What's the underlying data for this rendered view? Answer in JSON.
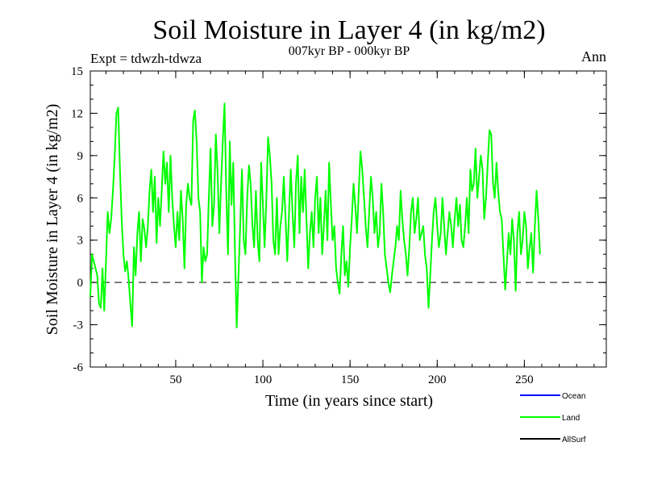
{
  "chart_data": {
    "type": "line",
    "title": "Soil Moisture in Layer 4 (in kg/m2)",
    "subtitle": "007kyr BP - 000kyr BP",
    "left_note": "Expt = tdwzh-tdwza",
    "right_note": "Ann",
    "xlabel": "Time (in years since start)",
    "ylabel": "Soil Moisture in Layer 4 (in kg/m2)",
    "xlim": [
      1,
      297
    ],
    "ylim": [
      -6,
      15
    ],
    "x_ticks": [
      50,
      100,
      150,
      200,
      250
    ],
    "y_ticks": [
      -6,
      -3,
      0,
      3,
      6,
      9,
      12,
      15
    ],
    "grid": false,
    "zero_line": "dashed",
    "legend_position": "bottom-right",
    "legend": [
      {
        "name": "Ocean",
        "color": "#0000ff"
      },
      {
        "name": "Land",
        "color": "#00ff00"
      },
      {
        "name": "AllSurf",
        "color": "#000000"
      }
    ],
    "series": [
      {
        "name": "Land",
        "color": "#00ff00",
        "x_start": 1,
        "x_step": 1,
        "values": [
          -1.0,
          2.0,
          1.5,
          1.0,
          0.5,
          -1.5,
          -1.8,
          1.0,
          -2.0,
          1.5,
          5.0,
          3.5,
          4.5,
          6.5,
          9.0,
          12.0,
          12.4,
          8.0,
          4.5,
          2.0,
          0.8,
          1.5,
          0.2,
          -1.5,
          -3.1,
          2.5,
          0.5,
          3.5,
          5.0,
          1.5,
          4.5,
          3.8,
          2.5,
          4.0,
          6.5,
          8.0,
          5.0,
          7.5,
          2.8,
          6.0,
          4.0,
          6.5,
          9.3,
          7.0,
          8.5,
          5.0,
          9.0,
          6.0,
          4.0,
          2.5,
          5.0,
          3.0,
          6.5,
          4.5,
          1.0,
          5.5,
          7.0,
          6.0,
          5.5,
          11.5,
          12.2,
          10.0,
          6.0,
          5.0,
          0.0,
          2.5,
          1.5,
          2.0,
          6.0,
          9.5,
          4.0,
          5.5,
          10.5,
          8.0,
          3.5,
          7.0,
          10.0,
          12.7,
          6.5,
          2.0,
          10.0,
          5.5,
          8.5,
          2.0,
          -3.2,
          0.5,
          4.0,
          8.0,
          3.0,
          2.0,
          6.0,
          8.3,
          7.0,
          4.0,
          2.5,
          6.5,
          3.0,
          1.5,
          8.5,
          5.5,
          2.5,
          6.0,
          10.3,
          9.0,
          7.0,
          3.0,
          2.0,
          6.0,
          2.0,
          4.0,
          5.0,
          7.5,
          4.5,
          1.5,
          5.0,
          8.0,
          5.0,
          2.5,
          7.0,
          9.0,
          3.5,
          7.5,
          5.0,
          8.0,
          4.5,
          1.0,
          3.5,
          5.0,
          2.5,
          6.0,
          7.5,
          3.5,
          6.0,
          2.0,
          4.0,
          6.5,
          3.0,
          8.5,
          5.5,
          3.0,
          4.0,
          1.0,
          0.0,
          -0.8,
          2.0,
          4.0,
          0.5,
          1.5,
          -0.3,
          2.5,
          4.5,
          7.0,
          5.5,
          3.5,
          6.5,
          9.3,
          8.0,
          6.0,
          4.0,
          2.5,
          5.0,
          7.5,
          6.0,
          3.5,
          5.0,
          2.5,
          3.5,
          7.0,
          5.0,
          2.0,
          1.0,
          0.0,
          -0.7,
          0.5,
          1.5,
          2.5,
          4.0,
          3.0,
          6.5,
          4.5,
          3.0,
          2.0,
          0.5,
          2.5,
          5.0,
          6.0,
          3.5,
          4.5,
          6.0,
          3.0,
          3.5,
          4.0,
          2.0,
          1.0,
          -1.8,
          0.5,
          3.0,
          5.0,
          6.0,
          4.0,
          2.5,
          3.5,
          6.0,
          4.0,
          2.0,
          3.5,
          5.0,
          4.0,
          2.5,
          4.5,
          6.0,
          4.0,
          5.5,
          3.0,
          2.5,
          4.0,
          6.0,
          3.5,
          8.0,
          6.5,
          7.0,
          9.5,
          6.0,
          7.5,
          9.0,
          8.0,
          4.5,
          6.0,
          8.5,
          10.8,
          10.5,
          7.0,
          6.0,
          8.5,
          6.5,
          5.0,
          4.5,
          2.0,
          -0.5,
          1.5,
          3.5,
          2.0,
          4.5,
          3.0,
          -0.6,
          3.5,
          5.0,
          2.0,
          3.0,
          5.0,
          4.0,
          1.0,
          2.5,
          3.5,
          0.7,
          4.0,
          6.5,
          4.5,
          2.0
        ]
      },
      {
        "name": "Ocean",
        "color": "#0000ff",
        "values": []
      },
      {
        "name": "AllSurf",
        "color": "#000000",
        "values": []
      }
    ]
  }
}
